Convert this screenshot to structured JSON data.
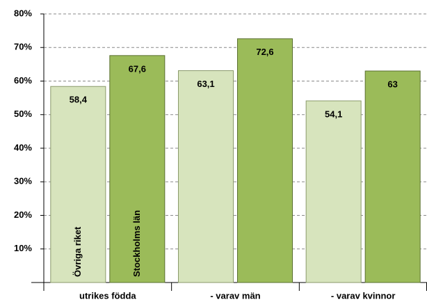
{
  "chart_data": {
    "type": "bar",
    "categories": [
      "utrikes födda",
      "- varav män",
      "- varav kvinnor"
    ],
    "series": [
      {
        "name": "Övriga riket",
        "color": "#d7e4bd",
        "values": [
          58.4,
          63.1,
          54.1
        ],
        "value_labels": [
          "58,4",
          "63,1",
          "54,1"
        ]
      },
      {
        "name": "Stockholms län",
        "color": "#9bbb59",
        "values": [
          67.6,
          72.6,
          63
        ],
        "value_labels": [
          "67,6",
          "72,6",
          "63"
        ]
      }
    ],
    "ylim": [
      0,
      80
    ],
    "yticks": [
      {
        "value": 10,
        "label": "10%"
      },
      {
        "value": 20,
        "label": "20%"
      },
      {
        "value": 30,
        "label": "30%"
      },
      {
        "value": 40,
        "label": "40%"
      },
      {
        "value": 50,
        "label": "50%"
      },
      {
        "value": 60,
        "label": "60%"
      },
      {
        "value": 70,
        "label": "70%"
      },
      {
        "value": 80,
        "label": "80%"
      }
    ],
    "grid": true
  }
}
